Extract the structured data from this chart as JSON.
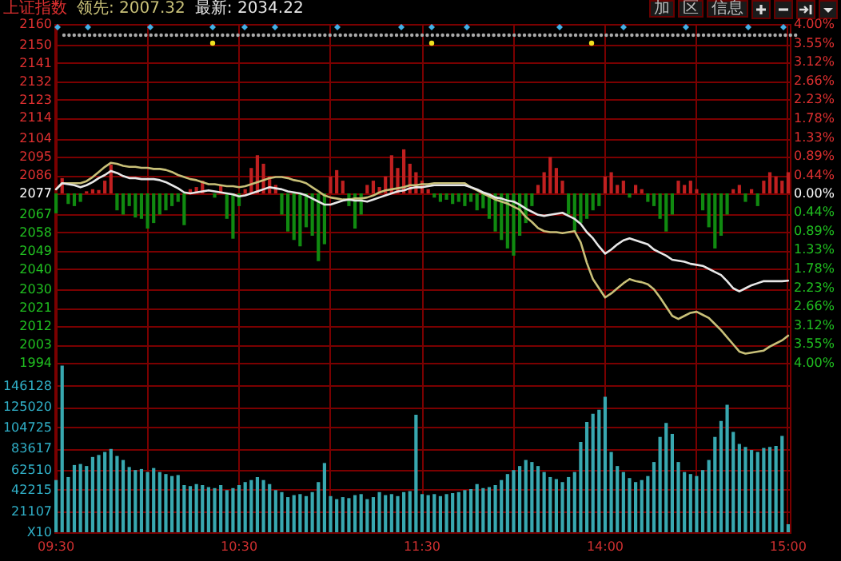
{
  "chart_data": [
    {
      "type": "line",
      "title": "上证指数",
      "legend": "top left",
      "grid": true,
      "tick_labels": "y",
      "annotations": [
        "加",
        "区",
        "信息"
      ],
      "categories": [
        null,
        null,
        null,
        null,
        null,
        null,
        null,
        null,
        null,
        null,
        null,
        null,
        null,
        null,
        null,
        null,
        null,
        null,
        null,
        null,
        null,
        null,
        null,
        null,
        null,
        null,
        null,
        null,
        null,
        null,
        null,
        null,
        null,
        null,
        null,
        null,
        null,
        null,
        null,
        null,
        null,
        null,
        null,
        null,
        null,
        null,
        null,
        null,
        null,
        null,
        null,
        null,
        null,
        null,
        null,
        null,
        null,
        null,
        null,
        null,
        null,
        null,
        null,
        null,
        null,
        null,
        null,
        null,
        null,
        null,
        null,
        null,
        null,
        null,
        null,
        null,
        null,
        null,
        null,
        null,
        null,
        null,
        null,
        null,
        null,
        null,
        null,
        null,
        null,
        null,
        null,
        null,
        null,
        null,
        null,
        null,
        null,
        null,
        null,
        null,
        null,
        null,
        null,
        null,
        null,
        null,
        null,
        null,
        null,
        null,
        null,
        null,
        null,
        null,
        null,
        null,
        null,
        null,
        null,
        null,
        null
      ],
      "ylim": [
        1994,
        2160
      ],
      "yticks": [
        1994,
        2003,
        2012,
        2021,
        2030,
        2040,
        2049,
        2058,
        2067,
        2077,
        2086,
        2095,
        2104,
        2114,
        2123,
        2132,
        2141,
        2150,
        2160
      ],
      "y2lim": [
        -4,
        4
      ],
      "y2ticks": [
        {
          "value": -4,
          "label": "4.00%"
        },
        {
          "value": -3.55,
          "label": "3.55%"
        },
        {
          "value": -3.12,
          "label": "3.12%"
        },
        {
          "value": -2.66,
          "label": "2.66%"
        },
        {
          "value": -2.23,
          "label": "2.23%"
        },
        {
          "value": -1.78,
          "label": "1.78%"
        },
        {
          "value": -1.33,
          "label": "1.33%"
        },
        {
          "value": -0.89,
          "label": "0.89%"
        },
        {
          "value": -0.44,
          "label": "0.44%"
        },
        {
          "value": 0,
          "label": "0.00%"
        },
        {
          "value": 0.44,
          "label": "0.44%"
        },
        {
          "value": 0.89,
          "label": "0.89%"
        },
        {
          "value": 1.33,
          "label": "1.33%"
        },
        {
          "value": 1.78,
          "label": "1.78%"
        },
        {
          "value": 2.23,
          "label": "2.23%"
        },
        {
          "value": 2.66,
          "label": "2.66%"
        },
        {
          "value": 3.12,
          "label": "3.12%"
        },
        {
          "value": 3.55,
          "label": "3.55%"
        },
        {
          "value": 4,
          "label": "4.00%"
        }
      ],
      "series": [
        {
          "type": "bar",
          "axis": "y2",
          "values": [
            -0.47,
            0.36,
            -0.25,
            -0.3,
            -0.2,
            0.05,
            0.1,
            0.08,
            0.3,
            0.68,
            -0.4,
            -0.5,
            -0.3,
            -0.57,
            -0.6,
            -0.83,
            -0.7,
            -0.5,
            -0.4,
            -0.3,
            -0.2,
            -0.75,
            0.1,
            0.15,
            0.3,
            null,
            -0.1,
            0.2,
            -0.6,
            -1.07,
            -0.3,
            0.1,
            0.6,
            0.9,
            0.7,
            0.4,
            0.2,
            -0.5,
            -0.9,
            -1.1,
            -1.25,
            -0.8,
            -1.0,
            -1.6,
            -1.2,
            0.4,
            0.55,
            0.3,
            -0.3,
            -0.83,
            -0.5,
            0.2,
            0.3,
            0.15,
            0.4,
            0.9,
            0.6,
            1.04,
            0.7,
            0.5,
            0.3,
            0.1,
            -0.1,
            -0.2,
            -0.15,
            -0.25,
            -0.2,
            -0.3,
            -0.2,
            -0.4,
            -0.35,
            -0.6,
            -0.9,
            -1.1,
            -1.3,
            -1.47,
            -1.0,
            -0.7,
            -0.3,
            0.2,
            0.5,
            0.86,
            0.6,
            0.3,
            -0.5,
            -0.9,
            -0.7,
            -0.6,
            -0.4,
            -0.3,
            0.4,
            0.5,
            0.2,
            0.3,
            -0.1,
            0.2,
            0.1,
            -0.2,
            -0.3,
            -0.6,
            -0.9,
            -0.5,
            0.3,
            0.2,
            0.3,
            0.1,
            -0.4,
            -0.8,
            -1.3,
            -1.0,
            -0.5,
            0.1,
            0.2,
            -0.2,
            0.1,
            -0.3,
            0.3,
            0.5,
            0.4,
            0.3,
            0.5
          ],
          "colors": [
            "#108a10",
            "#c02020",
            "#108a10",
            "#108a10",
            "#108a10",
            "#c02020",
            "#c02020",
            "#c02020",
            "#c02020",
            "#c02020",
            "#108a10",
            "#108a10",
            "#108a10",
            "#108a10",
            "#108a10",
            "#108a10",
            "#108a10",
            "#108a10",
            "#108a10",
            "#108a10",
            "#108a10",
            "#108a10",
            "#c02020",
            "#c02020",
            "#c02020",
            "#c02020",
            "#108a10",
            "#c02020",
            "#108a10",
            "#108a10",
            "#108a10",
            "#c02020",
            "#c02020",
            "#c02020",
            "#c02020",
            "#c02020",
            "#c02020",
            "#108a10",
            "#108a10",
            "#108a10",
            "#108a10",
            "#108a10",
            "#108a10",
            "#108a10",
            "#108a10",
            "#c02020",
            "#c02020",
            "#c02020",
            "#108a10",
            "#108a10",
            "#108a10",
            "#c02020",
            "#c02020",
            "#c02020",
            "#c02020",
            "#c02020",
            "#c02020",
            "#c02020",
            "#c02020",
            "#c02020",
            "#c02020",
            "#c02020",
            "#108a10",
            "#108a10",
            "#108a10",
            "#108a10",
            "#108a10",
            "#108a10",
            "#108a10",
            "#108a10",
            "#108a10",
            "#108a10",
            "#108a10",
            "#108a10",
            "#108a10",
            "#108a10",
            "#108a10",
            "#108a10",
            "#108a10",
            "#c02020",
            "#c02020",
            "#c02020",
            "#c02020",
            "#c02020",
            "#108a10",
            "#108a10",
            "#108a10",
            "#108a10",
            "#108a10",
            "#108a10",
            "#c02020",
            "#c02020",
            "#c02020",
            "#c02020",
            "#108a10",
            "#c02020",
            "#c02020",
            "#108a10",
            "#108a10",
            "#108a10",
            "#108a10",
            "#108a10",
            "#c02020",
            "#c02020",
            "#c02020",
            "#c02020",
            "#108a10",
            "#108a10",
            "#108a10",
            "#108a10",
            "#108a10",
            "#c02020",
            "#c02020",
            "#108a10",
            "#c02020",
            "#108a10",
            "#c02020",
            "#c02020",
            "#c02020",
            "#c02020",
            "#c02020"
          ]
        },
        {
          "name": "领先: 2007.32",
          "color": "#c8c078",
          "values": [
            2079,
            2082,
            2082,
            2082,
            2082,
            2083,
            2085,
            2087.5,
            2090,
            2092,
            2091.5,
            2090.5,
            2090,
            2090,
            2089.5,
            2089.5,
            2089,
            2089,
            2088.5,
            2087.5,
            2086,
            2085,
            2084,
            2083.5,
            2082.5,
            2081.5,
            2081.5,
            2081,
            2080.5,
            2080.5,
            2080,
            2080.5,
            2081.5,
            2082.5,
            2083.5,
            2084.5,
            2085,
            2085,
            2084.5,
            2083.5,
            2083,
            2082,
            2080,
            2078,
            2076,
            2075,
            2074.5,
            2074,
            2074,
            2074.5,
            2074.5,
            2075,
            2076,
            2077.5,
            2078.5,
            2079,
            2079.5,
            2080,
            2081,
            2081,
            2081.5,
            2081.5,
            2082,
            2082,
            2082,
            2082,
            2082,
            2082,
            2080,
            2078.5,
            2077,
            2075.5,
            2074,
            2073,
            2072,
            2070.5,
            2069,
            2065.5,
            2063,
            2060,
            2058.5,
            2058,
            2058,
            2057.5,
            2058,
            2058.5,
            2053,
            2043,
            2035,
            2030.5,
            2026,
            2028,
            2030.5,
            2033,
            2035,
            2034,
            2033.5,
            2032.5,
            2030,
            2026,
            2021.5,
            2017,
            2015.5,
            2017,
            2018.5,
            2019,
            2017.5,
            2016,
            2013,
            2010,
            2006.5,
            2003,
            1999.5,
            1998.5,
            1999,
            1999.5,
            2000,
            2002,
            2003.5,
            2005,
            2007.32
          ]
        },
        {
          "name": "最新: 2034.22",
          "color": "#e8e8e8",
          "values": [
            2079,
            2082,
            2081.5,
            2081,
            2080,
            2081,
            2082.5,
            2084.5,
            2086,
            2088,
            2087,
            2085.5,
            2084.5,
            2084.5,
            2084,
            2084,
            2084,
            2083.5,
            2082.5,
            2081,
            2079.5,
            2077.5,
            2077,
            2077.5,
            2078,
            2078.5,
            2078,
            2077.5,
            2077,
            2076.5,
            2075.5,
            2076,
            2077,
            2078,
            2079,
            2080,
            2079.5,
            2079,
            2078,
            2077.5,
            2077,
            2076,
            2074.5,
            2073,
            2071.5,
            2071.5,
            2072.5,
            2073.5,
            2074,
            2073.5,
            2073.5,
            2073,
            2074,
            2075,
            2076,
            2077,
            2078,
            2078.5,
            2079.5,
            2080,
            2080,
            2080.5,
            2081,
            2081,
            2081,
            2081,
            2081,
            2081,
            2080,
            2079,
            2077.5,
            2076.5,
            2075,
            2074.5,
            2073.5,
            2073,
            2071.5,
            2069.5,
            2068,
            2066.5,
            2066,
            2066.5,
            2067,
            2067.5,
            2066,
            2064.5,
            2062,
            2058,
            2055,
            2051,
            2047.5,
            2049.5,
            2052,
            2054,
            2055,
            2054,
            2053,
            2052,
            2049.5,
            2048,
            2046.5,
            2044.5,
            2044,
            2043.5,
            2042.5,
            2042,
            2041.5,
            2040,
            2038.5,
            2037,
            2034,
            2030.5,
            2029,
            2030.5,
            2032,
            2033,
            2034,
            2034,
            2034,
            2034,
            2034.22
          ]
        }
      ]
    },
    {
      "type": "bar",
      "grid": true,
      "color": "#38a8b0",
      "categories": [
        "09:30",
        null,
        null,
        null,
        null,
        null,
        null,
        null,
        null,
        null,
        null,
        null,
        null,
        null,
        null,
        null,
        null,
        null,
        null,
        null,
        null,
        null,
        null,
        null,
        null,
        null,
        null,
        null,
        null,
        null,
        "10:30",
        null,
        null,
        null,
        null,
        null,
        null,
        null,
        null,
        null,
        null,
        null,
        null,
        null,
        null,
        null,
        null,
        null,
        null,
        null,
        null,
        null,
        null,
        null,
        null,
        null,
        null,
        null,
        null,
        null,
        "11:30",
        null,
        null,
        null,
        null,
        null,
        null,
        null,
        null,
        null,
        null,
        null,
        null,
        null,
        null,
        null,
        null,
        null,
        null,
        null,
        null,
        null,
        null,
        null,
        null,
        null,
        null,
        null,
        null,
        null,
        "14:00",
        null,
        null,
        null,
        null,
        null,
        null,
        null,
        null,
        null,
        null,
        null,
        null,
        null,
        null,
        null,
        null,
        null,
        null,
        null,
        null,
        null,
        null,
        null,
        null,
        null,
        null,
        null,
        null,
        null,
        "15:00"
      ],
      "ylim": [
        0,
        168856
      ],
      "yticks": [
        {
          "value": 0,
          "label": "X10"
        },
        21107,
        42215,
        62510,
        83617,
        104725,
        125020,
        146128
      ],
      "values": [
        52000,
        166000,
        55000,
        67000,
        68000,
        66000,
        75000,
        77000,
        80000,
        83000,
        76000,
        72000,
        65000,
        62000,
        63000,
        60000,
        64000,
        60000,
        58000,
        56000,
        57000,
        47000,
        46000,
        48000,
        47000,
        45000,
        44000,
        47000,
        42000,
        44000,
        47000,
        50000,
        52000,
        55000,
        52000,
        48000,
        42000,
        40000,
        35000,
        37000,
        38000,
        36000,
        40000,
        50000,
        69000,
        36000,
        33000,
        35000,
        34000,
        37000,
        38000,
        33000,
        35000,
        40000,
        37000,
        38000,
        36000,
        40000,
        41000,
        117000,
        38000,
        37000,
        38000,
        36000,
        38000,
        39000,
        40000,
        42000,
        43000,
        48000,
        44000,
        45000,
        47000,
        52000,
        58000,
        62000,
        66000,
        72000,
        70000,
        66000,
        60000,
        55000,
        53000,
        50000,
        55000,
        60000,
        90000,
        110000,
        118000,
        122000,
        135000,
        80000,
        66000,
        60000,
        54000,
        50000,
        52000,
        56000,
        70000,
        95000,
        109000,
        98000,
        70000,
        60000,
        58000,
        56000,
        62000,
        72000,
        95000,
        111000,
        127000,
        100000,
        88000,
        85000,
        82000,
        80000,
        84000,
        85000,
        86000,
        96000,
        8000
      ]
    }
  ]
}
